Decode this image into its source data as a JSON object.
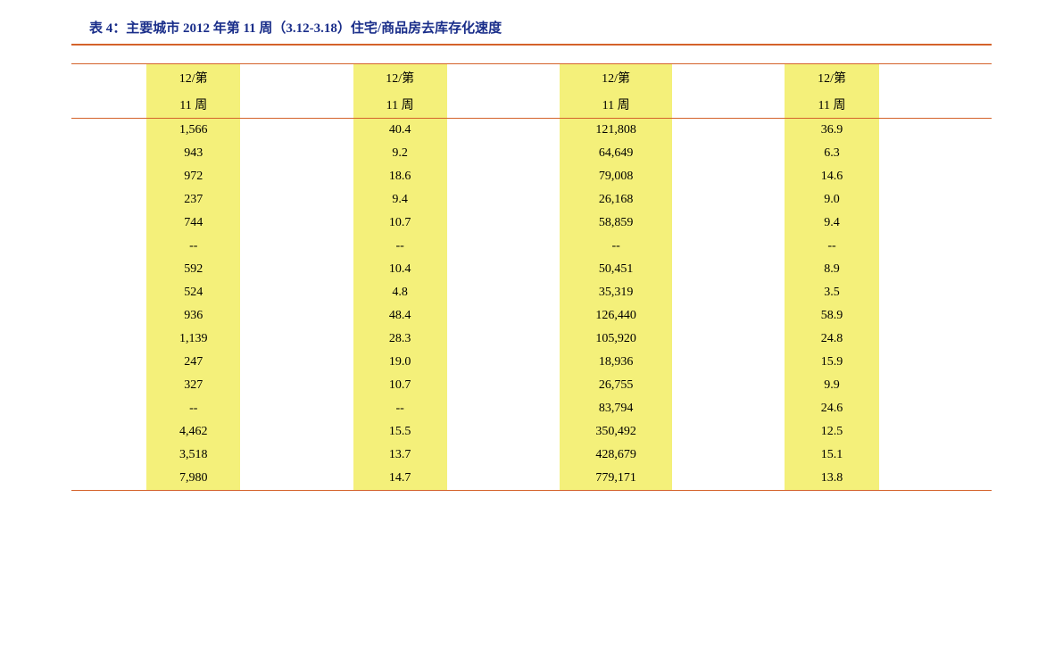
{
  "title": "表 4：主要城市 2012 年第 11 周（3.12-3.18）住宅/商品房去库存化速度",
  "table": {
    "header_line1": [
      "12/第",
      "12/第",
      "12/第",
      "12/第"
    ],
    "header_line2": [
      "11 周",
      "11 周",
      "11 周",
      "11 周"
    ],
    "rows": [
      {
        "c1": "1,566",
        "c2": "40.4",
        "c3": "121,808",
        "c4": "36.9"
      },
      {
        "c1": "943",
        "c2": "9.2",
        "c3": "64,649",
        "c4": "6.3"
      },
      {
        "c1": "972",
        "c2": "18.6",
        "c3": "79,008",
        "c4": "14.6"
      },
      {
        "c1": "237",
        "c2": "9.4",
        "c3": "26,168",
        "c4": "9.0"
      },
      {
        "c1": "744",
        "c2": "10.7",
        "c3": "58,859",
        "c4": "9.4"
      },
      {
        "c1": "--",
        "c2": "--",
        "c3": "--",
        "c4": "--"
      },
      {
        "c1": "592",
        "c2": "10.4",
        "c3": "50,451",
        "c4": "8.9"
      },
      {
        "c1": "524",
        "c2": "4.8",
        "c3": "35,319",
        "c4": "3.5"
      },
      {
        "c1": "936",
        "c2": "48.4",
        "c3": "126,440",
        "c4": "58.9"
      },
      {
        "c1": "1,139",
        "c2": "28.3",
        "c3": "105,920",
        "c4": "24.8"
      },
      {
        "c1": "247",
        "c2": "19.0",
        "c3": "18,936",
        "c4": "15.9"
      },
      {
        "c1": "327",
        "c2": "10.7",
        "c3": "26,755",
        "c4": "9.9"
      },
      {
        "c1": "--",
        "c2": "--",
        "c3": "83,794",
        "c4": "24.6"
      },
      {
        "c1": "4,462",
        "c2": "15.5",
        "c3": "350,492",
        "c4": "12.5"
      },
      {
        "c1": "3,518",
        "c2": "13.7",
        "c3": "428,679",
        "c4": "15.1"
      },
      {
        "c1": "7,980",
        "c2": "14.7",
        "c3": "779,171",
        "c4": "13.8"
      }
    ]
  },
  "styles": {
    "rule_color": "#d4622a",
    "highlight_bg": "#f4f07a",
    "title_color": "#1a2e8a",
    "text_color": "#000000",
    "font_size_body": 14,
    "font_size_title": 15
  }
}
